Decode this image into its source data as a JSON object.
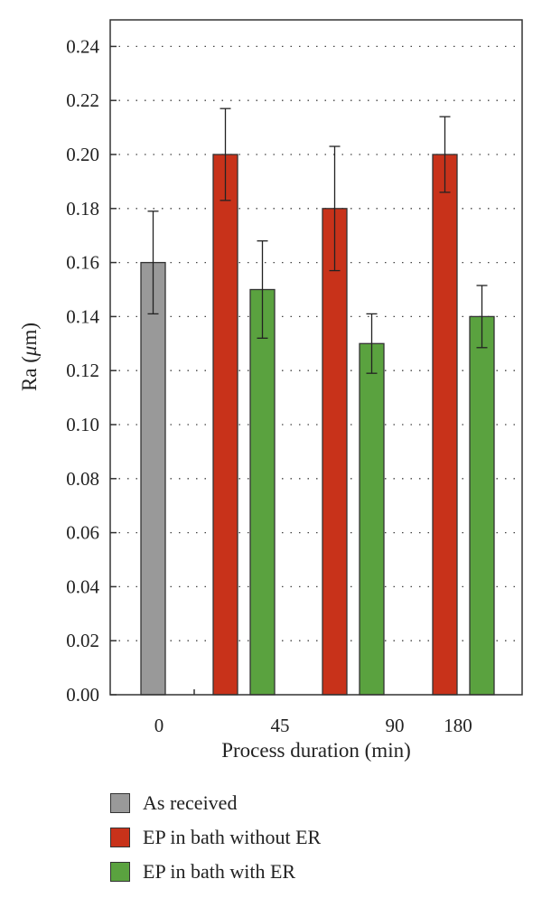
{
  "chart_data": {
    "type": "bar",
    "xlabel": "Process duration (min)",
    "ylabel_main": "Ra (",
    "ylabel_unit": "μ",
    "ylabel_end": "m)",
    "categories": [
      "0",
      "45",
      "90",
      "180"
    ],
    "ylim": [
      0,
      0.25
    ],
    "yticks": [
      "0.00",
      "0.02",
      "0.04",
      "0.06",
      "0.08",
      "0.10",
      "0.12",
      "0.14",
      "0.16",
      "0.18",
      "0.20",
      "0.22",
      "0.24"
    ],
    "grid": true,
    "legend_position": "bottom",
    "series": [
      {
        "name": "As received",
        "color": "#999999",
        "values": [
          0.16,
          null,
          null,
          null
        ],
        "errors": [
          0.019,
          null,
          null,
          null
        ]
      },
      {
        "name": "EP in bath without ER",
        "color": "#c8321a",
        "values": [
          null,
          0.2,
          0.18,
          0.2
        ],
        "errors": [
          null,
          0.017,
          0.023,
          0.014
        ]
      },
      {
        "name": "EP in bath with ER",
        "color": "#5aa23f",
        "values": [
          null,
          0.15,
          0.13,
          0.14
        ],
        "errors": [
          null,
          0.018,
          0.011,
          0.0115
        ]
      }
    ]
  }
}
